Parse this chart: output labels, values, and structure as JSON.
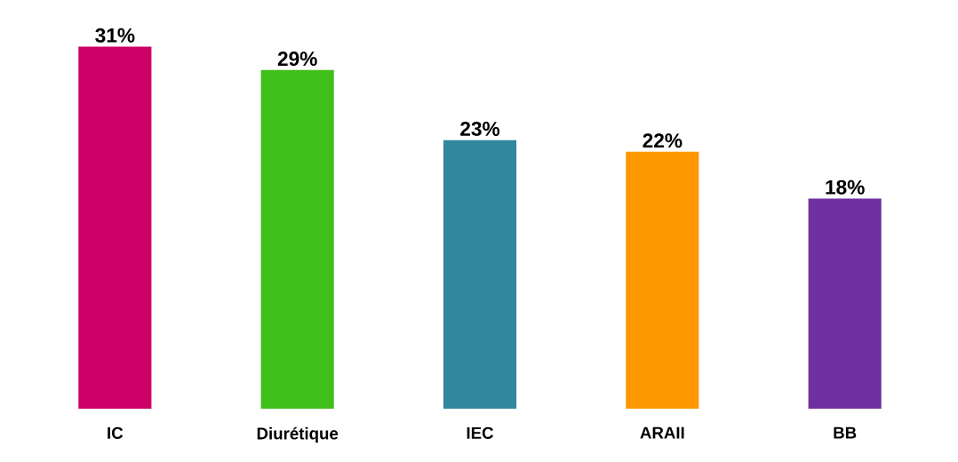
{
  "chart_data": {
    "type": "bar",
    "categories": [
      "IC",
      "Diurétique",
      "IEC",
      "ARAII",
      "BB"
    ],
    "values": [
      31,
      29,
      23,
      22,
      18
    ],
    "colors": [
      "#cc0066",
      "#40bf1a",
      "#31879e",
      "#ff9900",
      "#7030a0"
    ],
    "value_labels": [
      "31%",
      "29%",
      "23%",
      "22%",
      "18%"
    ]
  }
}
